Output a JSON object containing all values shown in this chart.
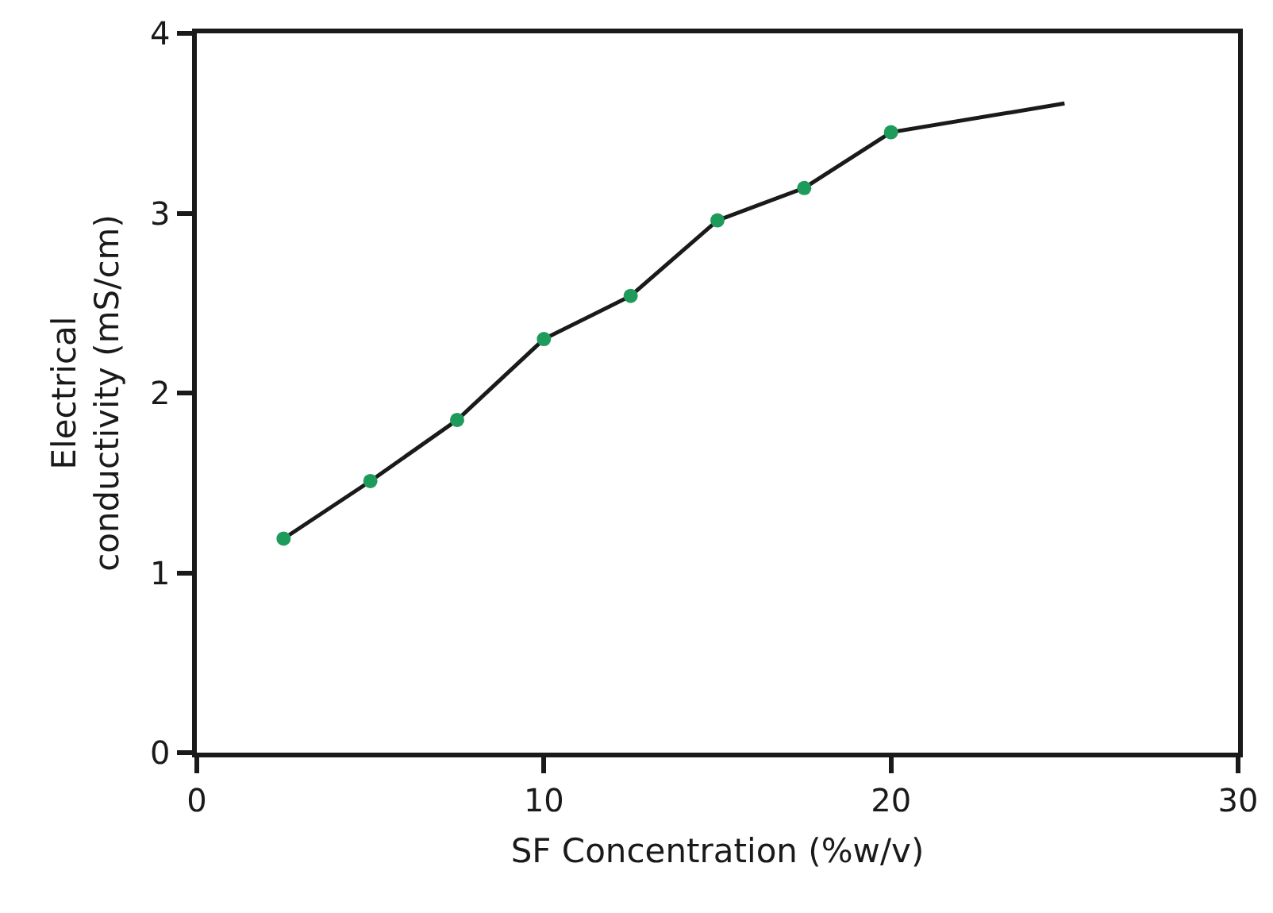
{
  "chart_data": {
    "type": "line",
    "xlabel": "SF Concentration (%w/v)",
    "ylabel": "Electrical\nconductivity (mS/cm)",
    "xlim": [
      0,
      30
    ],
    "xticks": [
      0,
      10,
      20,
      30
    ],
    "ylim": [
      0,
      4
    ],
    "yticks": [
      0,
      1,
      2,
      3,
      4
    ],
    "grid": false,
    "series": [
      {
        "color": "#1a1a1a",
        "marker": "none",
        "x": [
          2.5,
          5,
          7.5,
          10,
          12.5,
          15,
          17.5,
          20,
          25
        ],
        "values": [
          1.19,
          1.51,
          1.85,
          2.3,
          2.54,
          2.96,
          3.14,
          3.45,
          3.61
        ]
      },
      {
        "type": "scatter",
        "color": "#1e9b5a",
        "marker": "circle",
        "x": [
          2.5,
          5,
          7.5,
          10,
          12.5,
          15,
          17.5,
          20
        ],
        "values": [
          1.19,
          1.51,
          1.85,
          2.3,
          2.54,
          2.96,
          3.14,
          3.45
        ]
      }
    ]
  }
}
